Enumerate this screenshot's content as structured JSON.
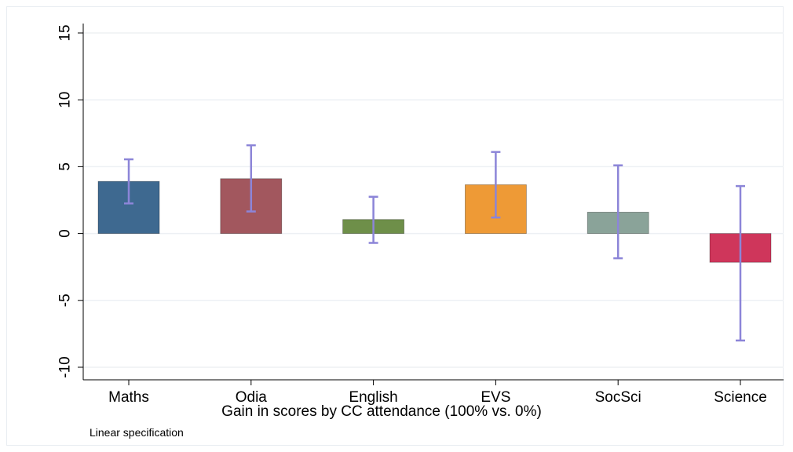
{
  "chart_data": {
    "type": "bar",
    "categories": [
      "Maths",
      "Odia",
      "English",
      "EVS",
      "SocSci",
      "Science"
    ],
    "values": [
      3.9,
      4.1,
      1.05,
      3.65,
      1.6,
      -2.15
    ],
    "ci_low": [
      2.25,
      1.65,
      -0.7,
      1.2,
      -1.85,
      -8.0
    ],
    "ci_high": [
      5.55,
      6.6,
      2.75,
      6.1,
      5.1,
      3.55
    ],
    "colors": [
      "#3e6990",
      "#a2575e",
      "#6e8f49",
      "#ee9a36",
      "#8aa399",
      "#cf365b"
    ],
    "errorbar_color": "#8c85d8",
    "xlabel": "Gain in scores by CC attendance (100% vs. 0%)",
    "ylabel": "",
    "ylim": [
      -10,
      15
    ],
    "yticks": [
      "15",
      "10",
      "5",
      "0",
      "-5",
      "-10"
    ],
    "grid": true,
    "note": "Linear specification"
  }
}
